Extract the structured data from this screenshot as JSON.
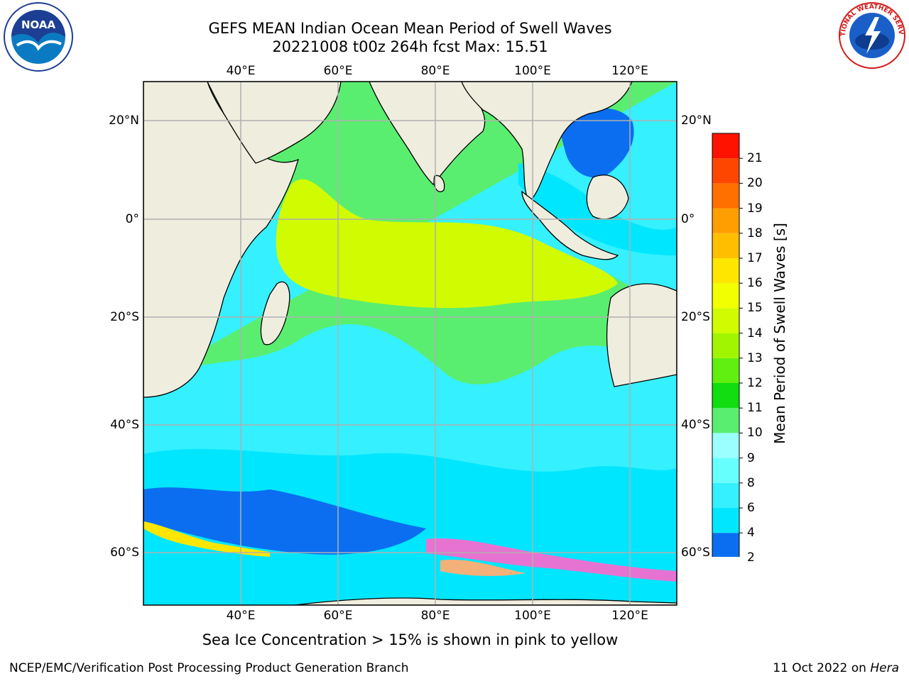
{
  "header": {
    "title_line1": "GEFS MEAN Indian Ocean Mean Period of Swell Waves",
    "title_line2": "20221008 t00z 264h fcst   Max: 15.51"
  },
  "logos": {
    "left": "noaa-logo",
    "right": "national-weather-service-logo",
    "right_text": "NATIONAL WEATHER SERVICE"
  },
  "map": {
    "lon_range": [
      20,
      130
    ],
    "lat_range": [
      -70,
      28
    ],
    "lon_ticks": [
      "40°E",
      "60°E",
      "80°E",
      "100°E",
      "120°E"
    ],
    "lat_ticks": [
      "20°N",
      "0°",
      "20°S",
      "40°S",
      "60°S"
    ],
    "land_color": "#efedde",
    "grid_color": "#b0b0b0",
    "regions": [
      {
        "name": "southern-ocean-short-period",
        "value": 3
      },
      {
        "name": "southern-ocean-band",
        "value": 5
      },
      {
        "name": "westerlies-belt",
        "value": 7
      },
      {
        "name": "subtropical-band",
        "value": 10
      },
      {
        "name": "equatorial-long-swell",
        "value": 14
      },
      {
        "name": "maritime-continent-seas",
        "value": 5
      },
      {
        "name": "south-china-sea",
        "value": 3
      }
    ]
  },
  "colorbar": {
    "title": "Mean Period of Swell Waves [s]",
    "levels": [
      "2",
      "4",
      "6",
      "8",
      "9",
      "10",
      "11",
      "12",
      "13",
      "14",
      "15",
      "16",
      "17",
      "18",
      "19",
      "20",
      "21"
    ],
    "colors": [
      "#0b6ef0",
      "#00e6ff",
      "#35f0ff",
      "#68ffff",
      "#9bffff",
      "#5aee70",
      "#11dd11",
      "#61ee11",
      "#a2f500",
      "#d1fb00",
      "#f1ff00",
      "#ffe600",
      "#ffbf00",
      "#ff9e00",
      "#ff7000",
      "#ff4600",
      "#ff1200"
    ],
    "under_color": "#0000ff"
  },
  "ice_note": "Sea Ice Concentration > 15% is shown in pink to yellow",
  "footer": {
    "left": "NCEP/EMC/Verification Post Processing Product Generation Branch",
    "right_date": "11 Oct 2022 on ",
    "right_host": "Hera"
  }
}
